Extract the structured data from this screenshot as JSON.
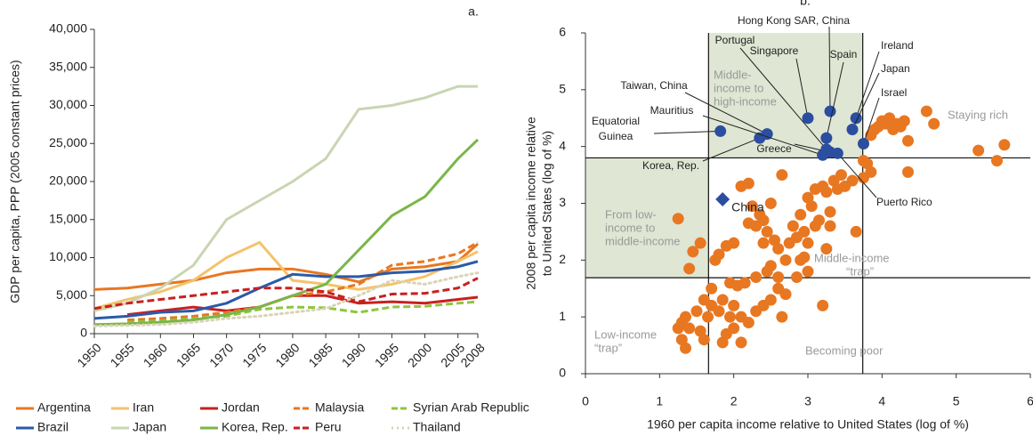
{
  "chart_data": [
    {
      "type": "line",
      "title": "a.",
      "ylabel": "GDP per capita, PPP (2005 constant prices)",
      "x": [
        1950,
        1955,
        1960,
        1965,
        1970,
        1975,
        1980,
        1985,
        1990,
        1995,
        2000,
        2005,
        2008
      ],
      "xlim": [
        1950,
        2008
      ],
      "xticks": [
        1950,
        1955,
        1960,
        1965,
        1970,
        1975,
        1980,
        1985,
        1990,
        1995,
        2000,
        2005,
        2008
      ],
      "ylim": [
        0,
        40000
      ],
      "yticks": [
        0,
        {
          "value": 5000,
          "label": "5,000"
        },
        {
          "value": 10000,
          "label": "10,000"
        },
        {
          "value": 15000,
          "label": "15,000"
        },
        {
          "value": 20000,
          "label": "20,000"
        },
        {
          "value": 25000,
          "label": "25,000"
        },
        {
          "value": 30000,
          "label": "30,000"
        },
        {
          "value": 35000,
          "label": "35,000"
        },
        {
          "value": 40000,
          "label": "40,000"
        }
      ],
      "series": [
        {
          "name": "Argentina",
          "color": "#e87722",
          "dash": "solid",
          "values": [
            5800,
            6000,
            6500,
            7000,
            8000,
            8500,
            8500,
            7800,
            6800,
            8500,
            8800,
            9500,
            11800
          ]
        },
        {
          "name": "Iran",
          "color": "#f5c26b",
          "dash": "solid",
          "values": [
            3300,
            4500,
            5500,
            7000,
            10000,
            12000,
            7000,
            6500,
            5800,
            6500,
            7500,
            9500,
            10800
          ]
        },
        {
          "name": "Jordan",
          "color": "#c8201f",
          "dash": "solid",
          "values": [
            null,
            2500,
            3000,
            3500,
            3000,
            3500,
            5000,
            5000,
            4000,
            4200,
            4000,
            4500,
            4800
          ]
        },
        {
          "name": "Malaysia",
          "color": "#e87722",
          "dash": "dashed",
          "values": [
            null,
            1800,
            2000,
            2300,
            2800,
            3500,
            5000,
            5500,
            6500,
            9000,
            9500,
            10500,
            12000
          ]
        },
        {
          "name": "Syrian Arab Republic",
          "color": "#8dc63f",
          "dash": "dashed",
          "values": [
            null,
            1500,
            1700,
            2000,
            2300,
            3200,
            3500,
            3400,
            2800,
            3500,
            3600,
            4000,
            4200
          ]
        },
        {
          "name": "Brazil",
          "color": "#2b5aa8",
          "dash": "solid",
          "values": [
            2000,
            2300,
            2800,
            3000,
            4000,
            6000,
            7800,
            7500,
            7500,
            8000,
            8200,
            8800,
            9500
          ]
        },
        {
          "name": "Japan",
          "color": "#c9d5b2",
          "dash": "solid",
          "values": [
            3000,
            4000,
            6000,
            9000,
            15000,
            17500,
            20000,
            23000,
            29500,
            30000,
            31000,
            32500,
            32500
          ]
        },
        {
          "name": "Korea, Rep.",
          "color": "#7ab648",
          "dash": "solid",
          "values": [
            1200,
            1300,
            1500,
            1800,
            2500,
            3500,
            5000,
            6500,
            11000,
            15500,
            18000,
            23000,
            25500
          ]
        },
        {
          "name": "Peru",
          "color": "#c8201f",
          "dash": "dashed",
          "values": [
            3300,
            4000,
            4500,
            5000,
            5500,
            6000,
            6000,
            5500,
            4200,
            5200,
            5300,
            6000,
            7300
          ]
        },
        {
          "name": "Thailand",
          "color": "#d9d3b8",
          "dash": "dotted",
          "values": [
            1000,
            1100,
            1200,
            1500,
            2000,
            2300,
            2800,
            3300,
            5000,
            7000,
            6500,
            7500,
            8000
          ]
        }
      ]
    },
    {
      "type": "scatter",
      "title": "b.",
      "xlabel": "1960 per capita income relative to United States (log of %)",
      "ylabel": [
        "2008 per capita income relative",
        "to United States (log of %)"
      ],
      "xlim": [
        0,
        6
      ],
      "xticks": [
        0,
        1,
        2,
        3,
        4,
        5,
        6
      ],
      "ylim": [
        0,
        6
      ],
      "yticks": [
        0,
        1,
        2,
        3,
        4,
        5,
        6
      ],
      "thresholds": {
        "x": [
          1.66,
          3.74
        ],
        "y": [
          1.69,
          3.8
        ]
      },
      "annotations": [
        [
          "Middle-",
          "income to",
          "high-income"
        ],
        [
          "From low-",
          "income to",
          "middle-income"
        ],
        [
          "Staying rich"
        ],
        [
          "Middle-income",
          "“trap”"
        ],
        [
          "Low-income",
          "“trap”"
        ],
        [
          "Becoming poor"
        ]
      ],
      "series": [
        {
          "color": "#e87722",
          "marker": "circle",
          "x": [
            3.85,
            3.9,
            3.95,
            4.0,
            4.05,
            4.1,
            4.15,
            4.2,
            4.25,
            4.3,
            4.35,
            4.6,
            4.7,
            5.3,
            5.55,
            5.65,
            4.35,
            3.75,
            3.85,
            3.8,
            3.75,
            1.25,
            1.4,
            1.45,
            1.55,
            1.75,
            1.8,
            1.9,
            2.0,
            1.95,
            2.05,
            2.1,
            2.2,
            2.25,
            2.3,
            2.35,
            2.4,
            2.45,
            2.5,
            2.55,
            2.6,
            2.65,
            2.75,
            2.8,
            2.85,
            2.9,
            2.95,
            3.0,
            3.05,
            3.1,
            3.15,
            3.2,
            3.25,
            3.3,
            3.35,
            3.4,
            3.45,
            3.5,
            3.6,
            3.65,
            3.0,
            2.95,
            3.1,
            3.25,
            3.3,
            2.7,
            2.6,
            2.5,
            2.4,
            2.2,
            2.15,
            2.0,
            1.85,
            1.7,
            1.65,
            1.6,
            1.5,
            1.35,
            1.3,
            1.25,
            1.3,
            1.4,
            1.55,
            1.6,
            1.35,
            1.7,
            1.8,
            1.85,
            1.9,
            2.0,
            2.1,
            2.2,
            2.3,
            2.4,
            2.5,
            2.6,
            2.7,
            2.85,
            3.0,
            3.2,
            2.9,
            2.65,
            2.1,
            1.95,
            2.3,
            2.45
          ],
          "values": [
            4.2,
            4.3,
            4.35,
            4.45,
            4.4,
            4.5,
            4.3,
            4.4,
            4.35,
            4.45,
            4.1,
            4.62,
            4.4,
            3.93,
            3.75,
            4.03,
            3.55,
            3.75,
            3.55,
            3.7,
            3.45,
            2.73,
            1.85,
            2.15,
            2.3,
            2.0,
            2.1,
            2.25,
            2.3,
            1.6,
            1.55,
            3.3,
            3.35,
            2.95,
            2.6,
            2.8,
            2.3,
            2.5,
            3.0,
            2.35,
            2.2,
            3.5,
            2.3,
            2.6,
            2.4,
            2.8,
            2.5,
            3.1,
            2.95,
            3.25,
            2.7,
            3.3,
            3.2,
            2.85,
            3.4,
            3.25,
            3.5,
            3.3,
            3.4,
            2.5,
            2.3,
            2.05,
            2.6,
            2.2,
            2.6,
            2.0,
            1.7,
            1.9,
            2.7,
            2.65,
            1.6,
            1.2,
            1.3,
            1.2,
            1.0,
            1.3,
            1.1,
            1.0,
            0.6,
            0.8,
            0.9,
            0.8,
            0.75,
            0.6,
            0.45,
            1.5,
            1.1,
            0.55,
            0.7,
            0.8,
            1.0,
            0.9,
            1.1,
            1.2,
            1.3,
            1.5,
            1.4,
            1.7,
            1.8,
            1.2,
            2.0,
            1.0,
            0.55,
            1.0,
            1.7,
            1.8
          ]
        },
        {
          "color": "#2b4ea0",
          "marker": "circle",
          "labels": [
            [
              "Equatorial",
              "Guinea"
            ],
            "Korea, Rep.",
            "Taiwan, China",
            "Mauritius",
            "Greece",
            "Portugal",
            "Singapore",
            "Hong Kong SAR, China",
            "Spain",
            "Ireland",
            "Japan",
            "Israel",
            "Puerto Rico"
          ],
          "x": [
            1.82,
            2.35,
            2.45,
            3.2,
            3.3,
            3.25,
            3.0,
            3.3,
            3.25,
            3.65,
            3.6,
            3.75,
            3.4
          ],
          "values": [
            4.27,
            4.15,
            4.22,
            3.85,
            3.9,
            3.95,
            4.5,
            4.62,
            4.15,
            4.5,
            4.3,
            4.05,
            3.88
          ]
        },
        {
          "name": "China",
          "color": "#2b4ea0",
          "marker": "diamond",
          "x": [
            1.85
          ],
          "values": [
            3.07
          ]
        }
      ]
    }
  ]
}
